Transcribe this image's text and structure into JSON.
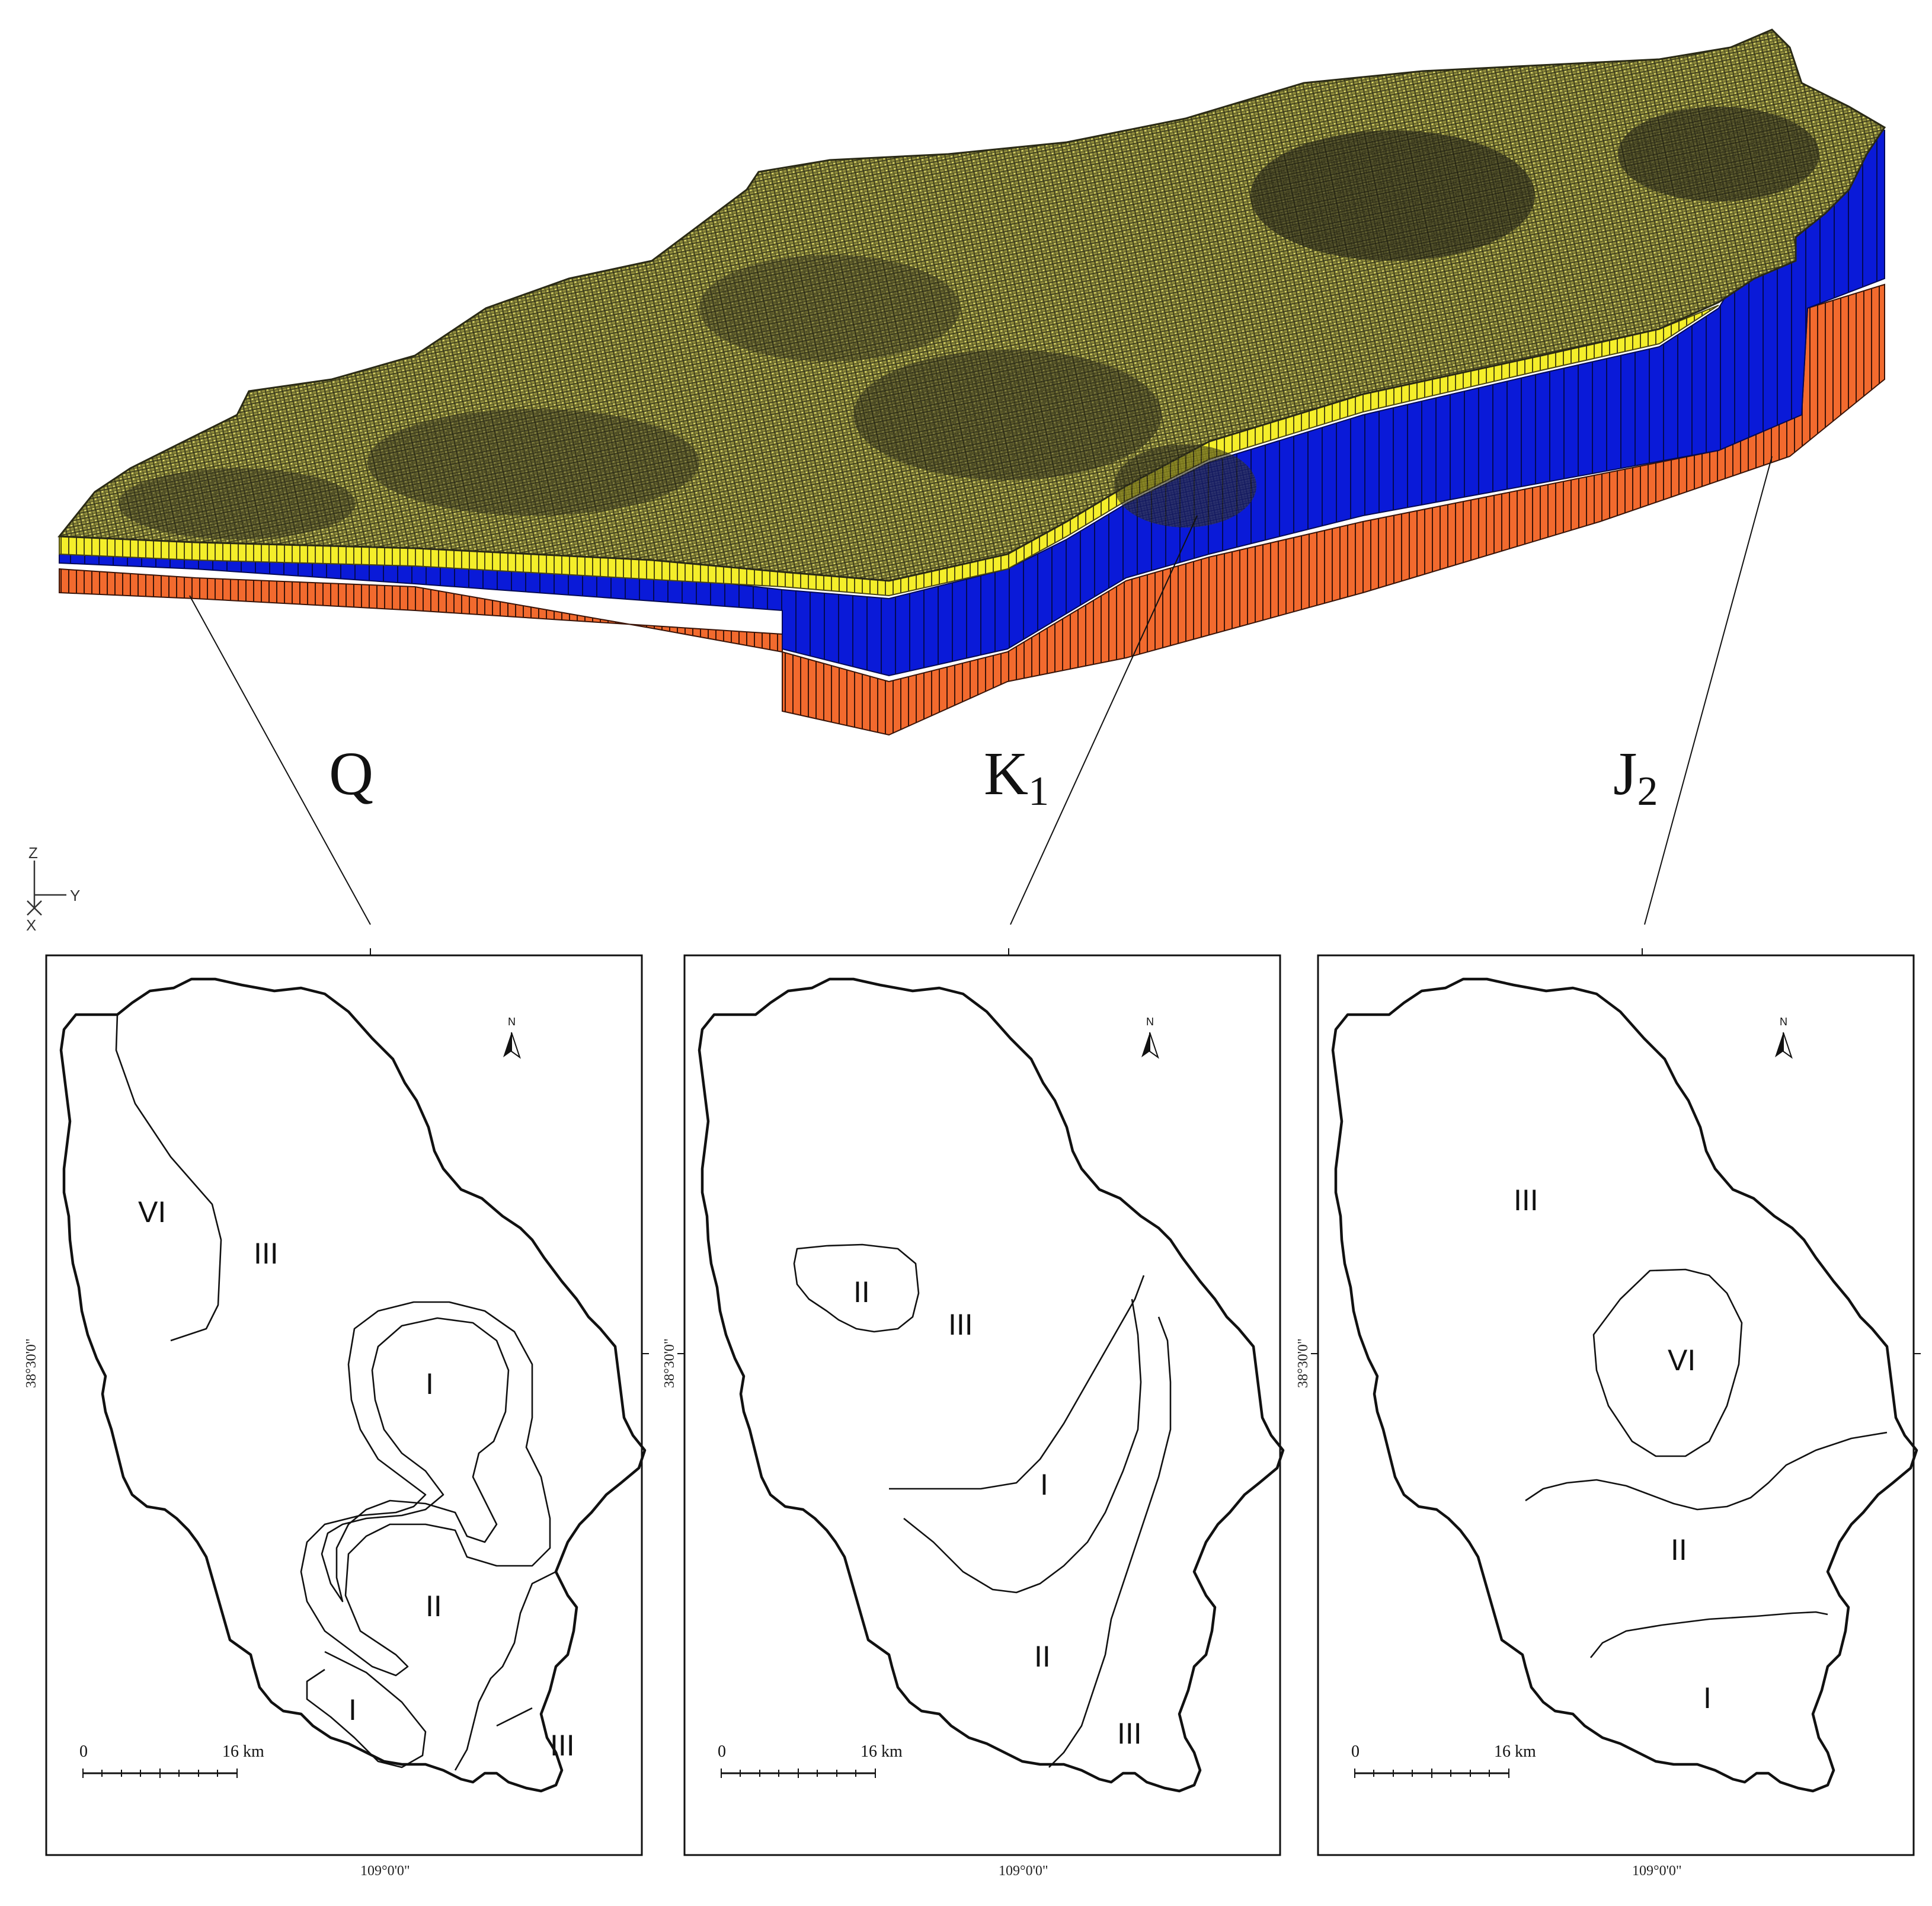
{
  "model_3d": {
    "layers": [
      {
        "name": "yellow-top-layer",
        "color": "#f4ee2a"
      },
      {
        "name": "blue-middle-layer",
        "color": "#0a1ad8"
      },
      {
        "name": "orange-bottom-layer",
        "color": "#f26a2e"
      }
    ],
    "mesh_color": "#6b6a2a",
    "axes": {
      "z": "Z",
      "y": "Y",
      "x": "X"
    }
  },
  "layer_labels": [
    {
      "main": "Q",
      "sub": ""
    },
    {
      "main": "K",
      "sub": "1"
    },
    {
      "main": "J",
      "sub": "2"
    }
  ],
  "maps": [
    {
      "zones": [
        "VI",
        "III",
        "I",
        "II",
        "I",
        "III"
      ],
      "lat_label": "38°30'0\"",
      "lon_label": "109°0'0\"",
      "north": "N",
      "scale": {
        "start": "0",
        "end": "16 km"
      }
    },
    {
      "zones": [
        "II",
        "III",
        "I",
        "II",
        "III"
      ],
      "lat_label": "38°30'0\"",
      "lon_label": "109°0'0\"",
      "north": "N",
      "scale": {
        "start": "0",
        "end": "16 km"
      }
    },
    {
      "zones": [
        "III",
        "VI",
        "II",
        "I"
      ],
      "lat_label": "38°30'0\"",
      "lon_label": "109°0'0\"",
      "north": "N",
      "scale": {
        "start": "0",
        "end": "16 km"
      }
    }
  ]
}
